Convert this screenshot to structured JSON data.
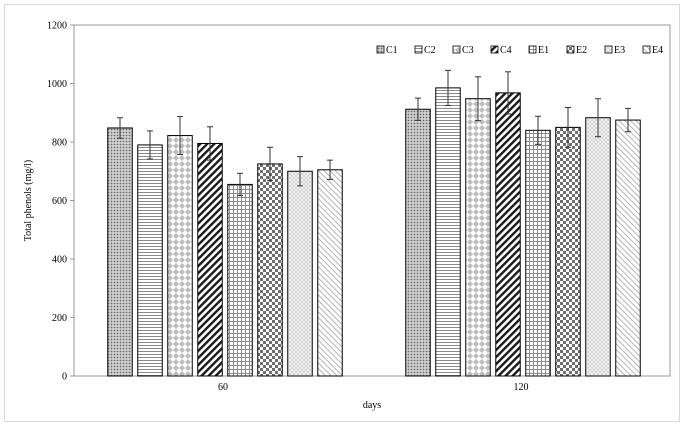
{
  "chart_data": {
    "type": "bar",
    "title": "",
    "xlabel": "days",
    "ylabel": "Total phenols (mg/l)",
    "ylim": [
      0,
      1200
    ],
    "yticks": [
      0,
      200,
      400,
      600,
      800,
      1000,
      1200
    ],
    "grid": false,
    "legend_position": "top-right",
    "categories": [
      "60",
      "120"
    ],
    "series": [
      {
        "name": "C1",
        "pattern": "dots-dense",
        "values": [
          848,
          912
        ],
        "errors": [
          35,
          38
        ]
      },
      {
        "name": "C2",
        "pattern": "horizontal-lines",
        "values": [
          790,
          985
        ],
        "errors": [
          48,
          60
        ]
      },
      {
        "name": "C3",
        "pattern": "diamond-checks",
        "values": [
          822,
          948
        ],
        "errors": [
          65,
          75
        ]
      },
      {
        "name": "C4",
        "pattern": "wide-diagonal",
        "values": [
          795,
          968
        ],
        "errors": [
          57,
          72
        ]
      },
      {
        "name": "E1",
        "pattern": "small-grid",
        "values": [
          655,
          840
        ],
        "errors": [
          38,
          48
        ]
      },
      {
        "name": "E2",
        "pattern": "checkerboard",
        "values": [
          725,
          850
        ],
        "errors": [
          57,
          68
        ]
      },
      {
        "name": "E3",
        "pattern": "sparse-dots",
        "values": [
          700,
          883
        ],
        "errors": [
          50,
          65
        ]
      },
      {
        "name": "E4",
        "pattern": "light-diagonal",
        "values": [
          705,
          875
        ],
        "errors": [
          33,
          40
        ]
      }
    ]
  }
}
